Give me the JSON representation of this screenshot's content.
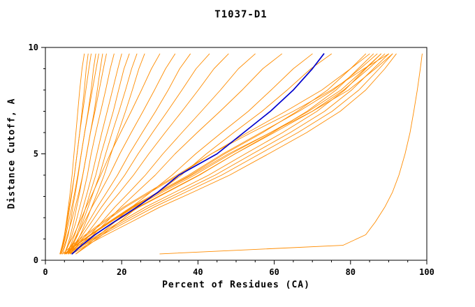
{
  "chart_data": {
    "type": "line",
    "title": "T1037-D1",
    "xlabel": "Percent of Residues (CA)",
    "ylabel": "Distance Cutoff, A",
    "xlim": [
      0,
      100
    ],
    "ylim": [
      0,
      10
    ],
    "x_ticks": [
      0,
      20,
      40,
      60,
      80,
      100
    ],
    "y_ticks": [
      0,
      5,
      10
    ],
    "x_minor_step": 5,
    "y_minor_step": 1,
    "grid": false,
    "legend": "none",
    "colors": {
      "model": "#ff8c00",
      "highlight": "#0000cd",
      "axis": "#000000",
      "background": "#ffffff"
    },
    "y_levels": [
      0.3,
      0.7,
      1.2,
      1.8,
      2.5,
      3.2,
      4.0,
      5.0,
      6.0,
      7.0,
      8.0,
      9.0,
      9.7
    ],
    "series": [
      {
        "name": "model-01",
        "color": "model",
        "x": [
          4,
          4.5,
          5,
          5.5,
          6,
          6.5,
          7,
          7.5,
          8,
          8.5,
          9,
          9.6,
          10.2
        ]
      },
      {
        "name": "model-02",
        "color": "model",
        "x": [
          4,
          4.6,
          5.2,
          5.8,
          6.4,
          7,
          7.6,
          8.3,
          9,
          9.8,
          10.6,
          11.4,
          12
        ]
      },
      {
        "name": "model-03",
        "color": "model",
        "x": [
          4.5,
          5.2,
          6,
          6.6,
          7.2,
          7.9,
          8.6,
          9.4,
          10.3,
          11.3,
          12.3,
          13.3,
          14
        ]
      },
      {
        "name": "model-04",
        "color": "model",
        "x": [
          5,
          5.8,
          6.6,
          7.4,
          8.2,
          9,
          9.8,
          10.8,
          11.8,
          13,
          14.1,
          15.2,
          16
        ]
      },
      {
        "name": "model-05",
        "color": "model",
        "x": [
          5,
          6,
          7,
          8,
          9,
          10,
          11,
          12,
          13.2,
          14.5,
          15.8,
          17,
          18
        ]
      },
      {
        "name": "model-06",
        "color": "model",
        "x": [
          5.5,
          6.6,
          7.7,
          8.8,
          9.9,
          11,
          12.2,
          13.5,
          14.8,
          16.2,
          17.6,
          19,
          20
        ]
      },
      {
        "name": "model-07",
        "color": "model",
        "x": [
          6,
          7,
          8.2,
          9.4,
          10.6,
          11.8,
          13.2,
          14.6,
          16.2,
          17.8,
          19.2,
          20.6,
          22
        ]
      },
      {
        "name": "model-08",
        "color": "model",
        "x": [
          6,
          7.2,
          8.5,
          9.8,
          11.2,
          12.6,
          14.2,
          15.8,
          17.5,
          19.3,
          21,
          22.6,
          24
        ]
      },
      {
        "name": "model-09",
        "color": "model",
        "x": [
          6.5,
          7.8,
          9.2,
          10.6,
          12.1,
          13.7,
          15.4,
          17.2,
          19.1,
          21,
          22.8,
          24.5,
          26
        ]
      },
      {
        "name": "model-10",
        "color": "model",
        "x": [
          4.2,
          5,
          5.8,
          6.8,
          7.8,
          8.8,
          9.8,
          10.8,
          11.8,
          12.8,
          13.6,
          14.4,
          15
        ]
      },
      {
        "name": "model-11",
        "color": "model",
        "x": [
          3.8,
          4.4,
          5,
          5.6,
          6.2,
          6.9,
          7.6,
          8.3,
          9,
          9.6,
          10.2,
          10.7,
          11.2
        ]
      },
      {
        "name": "model-12",
        "color": "model",
        "x": [
          4,
          4.7,
          5.4,
          6.1,
          6.9,
          7.7,
          8.5,
          9.4,
          10.3,
          11.2,
          12,
          12.6,
          13.2
        ]
      },
      {
        "name": "model-13",
        "color": "model",
        "x": [
          5,
          6,
          7.5,
          9,
          10.7,
          12.5,
          14.5,
          17,
          19.7,
          22.5,
          25.2,
          27.8,
          30
        ]
      },
      {
        "name": "model-14",
        "color": "model",
        "x": [
          5.5,
          6.8,
          8.4,
          10.2,
          12.2,
          14.4,
          16.8,
          19.5,
          22.5,
          25.6,
          28.6,
          31.5,
          34
        ]
      },
      {
        "name": "model-15",
        "color": "model",
        "x": [
          6,
          7.5,
          9.3,
          11.3,
          13.6,
          16.1,
          18.9,
          22,
          25.4,
          28.9,
          32.2,
          35.2,
          38
        ]
      },
      {
        "name": "model-16",
        "color": "model",
        "x": [
          6,
          7.8,
          9.8,
          12.1,
          14.7,
          17.6,
          20.8,
          24.3,
          28.1,
          32,
          35.8,
          39.5,
          43
        ]
      },
      {
        "name": "model-17",
        "color": "model",
        "x": [
          6.5,
          8.4,
          10.7,
          13.3,
          16.2,
          19.5,
          23.1,
          27.1,
          31.4,
          35.8,
          40.1,
          44.2,
          48
        ]
      },
      {
        "name": "model-18",
        "color": "model",
        "x": [
          7,
          9.2,
          11.8,
          14.8,
          18.2,
          22,
          26.2,
          30.8,
          35.8,
          40.9,
          45.9,
          50.6,
          55
        ]
      },
      {
        "name": "model-19",
        "color": "model",
        "x": [
          7,
          9.6,
          12.6,
          16,
          19.8,
          24,
          28.8,
          34,
          39.8,
          45.8,
          51.6,
          57,
          62
        ]
      },
      {
        "name": "model-20",
        "color": "model",
        "x": [
          8,
          10.8,
          14.2,
          18.2,
          22.6,
          27.6,
          33.2,
          39.4,
          46.2,
          53.2,
          59.2,
          65,
          70
        ]
      },
      {
        "name": "model-21",
        "color": "model",
        "x": [
          8,
          11.2,
          15,
          19.4,
          24.2,
          29.6,
          35.6,
          42.2,
          49.4,
          56.8,
          63.4,
          69.6,
          75
        ]
      },
      {
        "name": "model-22",
        "color": "model",
        "x": [
          5,
          8,
          12,
          17,
          23,
          30,
          38,
          47,
          57,
          66,
          74,
          80,
          84
        ]
      },
      {
        "name": "model-23",
        "color": "model",
        "x": [
          5.5,
          8.6,
          12.9,
          18.2,
          24.6,
          32,
          40.4,
          49.7,
          59.5,
          68.6,
          76.2,
          82,
          86
        ]
      },
      {
        "name": "model-24",
        "color": "model",
        "x": [
          6,
          9.3,
          13.9,
          19.5,
          26.2,
          34,
          42.8,
          52.4,
          62.2,
          71.2,
          78.5,
          84,
          88
        ]
      },
      {
        "name": "model-25",
        "color": "model",
        "x": [
          6,
          9.6,
          14.4,
          20.3,
          27.3,
          35.4,
          44.5,
          54.3,
          64.2,
          73.2,
          80.3,
          86,
          90
        ]
      },
      {
        "name": "model-26",
        "color": "model",
        "x": [
          6.5,
          10,
          15,
          21.2,
          28.5,
          36.8,
          46.2,
          56.2,
          66.2,
          75.2,
          82.2,
          87.5,
          91
        ]
      },
      {
        "name": "model-27",
        "color": "model",
        "x": [
          7,
          10.7,
          16,
          22.5,
          30,
          38.7,
          48.3,
          58.5,
          68.5,
          77.3,
          84,
          89,
          92
        ]
      },
      {
        "name": "model-28",
        "color": "model",
        "x": [
          5,
          7.5,
          11,
          15.5,
          21,
          27.5,
          35,
          43.5,
          53,
          63,
          72.5,
          80,
          85
        ]
      },
      {
        "name": "model-29",
        "color": "model",
        "x": [
          5.5,
          8,
          11.8,
          16.6,
          22.5,
          29.5,
          37.5,
          46.5,
          56.5,
          66.5,
          75.5,
          82.5,
          87
        ]
      },
      {
        "name": "model-30",
        "color": "model",
        "x": [
          6,
          8.7,
          12.8,
          18,
          24.3,
          31.7,
          40.2,
          49.7,
          60,
          70,
          78.2,
          84.7,
          89
        ]
      },
      {
        "name": "model-31",
        "color": "model",
        "x": [
          4.5,
          7,
          10.5,
          15,
          20.5,
          27,
          34.5,
          43.5,
          54,
          65,
          75,
          83.5,
          90
        ]
      },
      {
        "name": "model-32",
        "color": "model",
        "x": [
          5,
          7.8,
          11.7,
          16.7,
          22.8,
          30,
          38.4,
          48,
          59,
          70,
          79.5,
          86.5,
          91
        ]
      },
      {
        "name": "model-33",
        "color": "model",
        "x": [
          5.2,
          8.1,
          12.1,
          17.2,
          23.4,
          30.7,
          39.1,
          48.6,
          59,
          69,
          77.5,
          83.8,
          88
        ]
      },
      {
        "name": "model-34",
        "color": "model",
        "x": [
          30,
          78,
          84,
          86.5,
          89,
          91,
          92.7,
          94.3,
          95.6,
          96.6,
          97.5,
          98.3,
          98.8
        ]
      },
      {
        "name": "highlighted-model",
        "color": "highlight",
        "x": [
          7,
          9.5,
          13,
          18,
          24,
          29.5,
          35,
          45,
          52,
          59,
          65,
          70,
          73
        ]
      }
    ]
  }
}
